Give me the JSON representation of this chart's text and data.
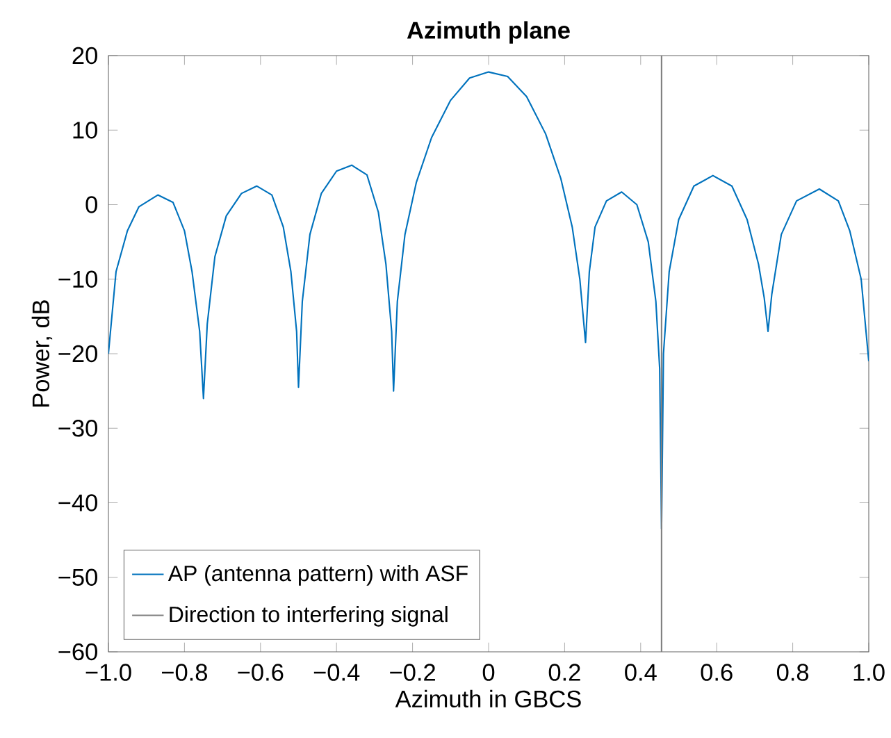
{
  "chart_data": {
    "type": "line",
    "title": "Azimuth plane",
    "xlabel": "Azimuth in GBCS",
    "ylabel": "Power, dB",
    "xlim": [
      -1,
      1
    ],
    "ylim": [
      -60,
      20
    ],
    "xticks": [
      {
        "value": -1,
        "label": "−1.0"
      },
      {
        "value": -0.8,
        "label": "−0.8"
      },
      {
        "value": -0.6,
        "label": "−0.6"
      },
      {
        "value": -0.4,
        "label": "−0.4"
      },
      {
        "value": -0.2,
        "label": "−0.2"
      },
      0,
      {
        "value": 0.2,
        "label": "0.2"
      },
      {
        "value": 0.4,
        "label": "0.4"
      },
      {
        "value": 0.6,
        "label": "0.6"
      },
      {
        "value": 0.8,
        "label": "0.8"
      },
      {
        "value": 1,
        "label": "1.0"
      }
    ],
    "yticks": [
      {
        "value": -60,
        "label": "−60"
      },
      {
        "value": -50,
        "label": "−50"
      },
      {
        "value": -40,
        "label": "−40"
      },
      {
        "value": -30,
        "label": "−30"
      },
      {
        "value": -20,
        "label": "−20"
      },
      {
        "value": -10,
        "label": "−10"
      },
      0,
      10,
      20
    ],
    "grid": false,
    "legend": "bottom left",
    "marker": "none",
    "line_style": "solid",
    "series": [
      {
        "name": "AP (antenna pattern) with ASF",
        "color": "#0072bd",
        "x": [
          -1,
          -0.98,
          -0.95,
          -0.92,
          -0.87,
          -0.83,
          -0.8,
          -0.78,
          -0.76,
          -0.75,
          -0.74,
          -0.72,
          -0.69,
          -0.65,
          -0.61,
          -0.57,
          -0.54,
          -0.52,
          -0.505,
          -0.5,
          -0.49,
          -0.47,
          -0.44,
          -0.4,
          -0.36,
          -0.32,
          -0.29,
          -0.27,
          -0.255,
          -0.25,
          -0.24,
          -0.22,
          -0.19,
          -0.15,
          -0.1,
          -0.05,
          0,
          0.05,
          0.1,
          0.15,
          0.19,
          0.22,
          0.24,
          0.255,
          0.265,
          0.28,
          0.31,
          0.35,
          0.39,
          0.42,
          0.44,
          0.45,
          0.455,
          0.46,
          0.475,
          0.5,
          0.54,
          0.59,
          0.64,
          0.68,
          0.71,
          0.725,
          0.735,
          0.745,
          0.77,
          0.81,
          0.87,
          0.92,
          0.95,
          0.98,
          1
        ],
        "values": [
          -20,
          -9,
          -3.5,
          -0.3,
          1.3,
          0.3,
          -3.5,
          -9,
          -17,
          -26,
          -16,
          -7,
          -1.5,
          1.5,
          2.5,
          1.3,
          -3,
          -9,
          -17,
          -24.5,
          -13,
          -4,
          1.5,
          4.5,
          5.3,
          4,
          -1,
          -8,
          -17,
          -25,
          -13,
          -4,
          3,
          9,
          14,
          17,
          17.8,
          17.2,
          14.5,
          9.5,
          3.5,
          -3,
          -10,
          -18.5,
          -9,
          -3,
          0.5,
          1.7,
          0,
          -5,
          -13,
          -22,
          -43.5,
          -20,
          -9,
          -2,
          2.5,
          3.9,
          2.5,
          -2,
          -8,
          -12.5,
          -17,
          -12,
          -4,
          0.5,
          2.1,
          0.5,
          -3.5,
          -10,
          -21
        ]
      },
      {
        "name": "Direction to interfering signal",
        "color": "#808080",
        "x": [
          0.455,
          0.455
        ],
        "values": [
          -60,
          20
        ]
      }
    ]
  }
}
